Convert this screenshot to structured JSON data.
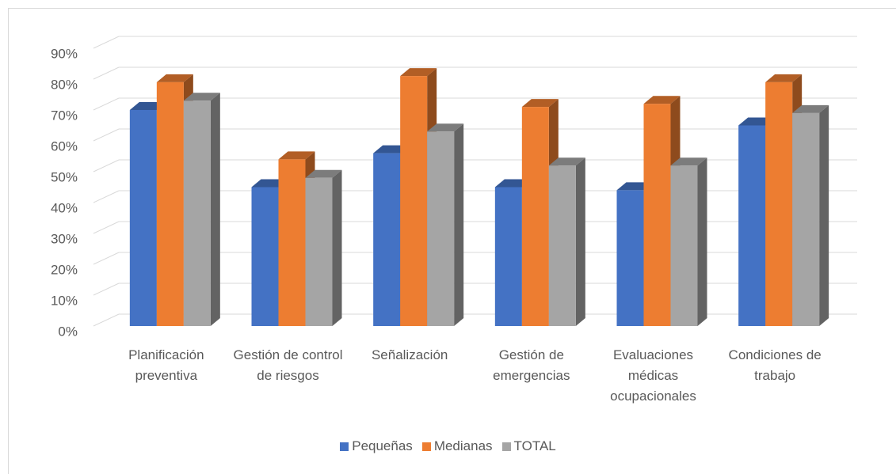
{
  "chart_data": {
    "type": "bar3d",
    "categories": [
      "Planificación preventiva",
      "Gestión de control de riesgos",
      "Señalización",
      "Gestión de emergencias",
      "Evaluaciones médicas ocupacionales",
      "Condiciones de trabajo"
    ],
    "series": [
      {
        "name": "Pequeñas",
        "color": "#4472c4",
        "values": [
          70,
          45,
          56,
          45,
          44,
          65
        ]
      },
      {
        "name": "Medianas",
        "color": "#ed7d31",
        "values": [
          79,
          54,
          81,
          71,
          72,
          79
        ]
      },
      {
        "name": "TOTAL",
        "color": "#a5a5a5",
        "values": [
          73,
          48,
          63,
          52,
          52,
          69
        ]
      }
    ],
    "ylim": [
      0,
      90
    ],
    "yticks": [
      {
        "value": 0,
        "label": "0%"
      },
      {
        "value": 10,
        "label": "10%"
      },
      {
        "value": 20,
        "label": "20%"
      },
      {
        "value": 30,
        "label": "30%"
      },
      {
        "value": 40,
        "label": "40%"
      },
      {
        "value": 50,
        "label": "50%"
      },
      {
        "value": 60,
        "label": "60%"
      },
      {
        "value": 70,
        "label": "70%"
      },
      {
        "value": 80,
        "label": "80%"
      },
      {
        "value": 90,
        "label": "90%"
      }
    ],
    "grid": true,
    "legend": "bottom"
  }
}
